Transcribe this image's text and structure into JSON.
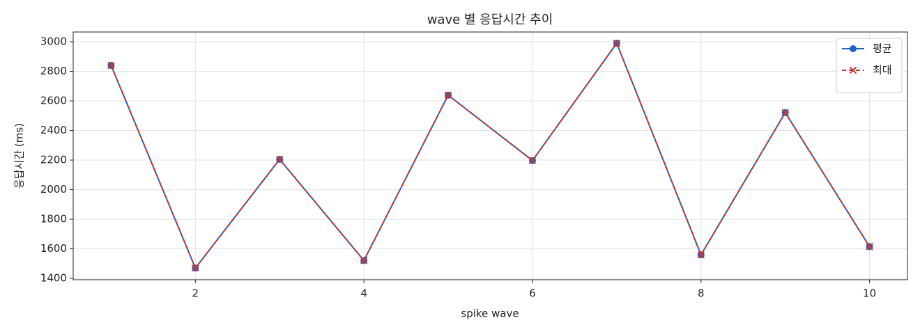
{
  "chart_data": {
    "type": "line",
    "title": "wave 별 응답시간 추이",
    "x_label": "spike wave",
    "y_label": "응답시간 (ms)",
    "x": [
      1,
      2,
      3,
      4,
      5,
      6,
      7,
      8,
      9,
      10
    ],
    "series": [
      {
        "name": "평균",
        "color": "#1f64b8",
        "linestyle": "solid",
        "marker": "o",
        "values": [
          2840,
          1470,
          2205,
          1521,
          2639,
          2197,
          2990,
          1559,
          2521,
          1615
        ]
      },
      {
        "name": "최대",
        "color": "#cc3333",
        "linestyle": "dashed",
        "marker": "x",
        "values": [
          2840,
          1470,
          2205,
          1521,
          2639,
          2197,
          2990,
          1559,
          2521,
          1615
        ]
      }
    ],
    "xlim": [
      0.55,
      10.45
    ],
    "xticks": [
      2,
      4,
      6,
      8,
      10
    ],
    "ylim": [
      1391,
      3066
    ],
    "yticks": [
      1400,
      1600,
      1800,
      2000,
      2200,
      2400,
      2600,
      2800,
      3000
    ],
    "grid": true,
    "legend": "upper right"
  }
}
